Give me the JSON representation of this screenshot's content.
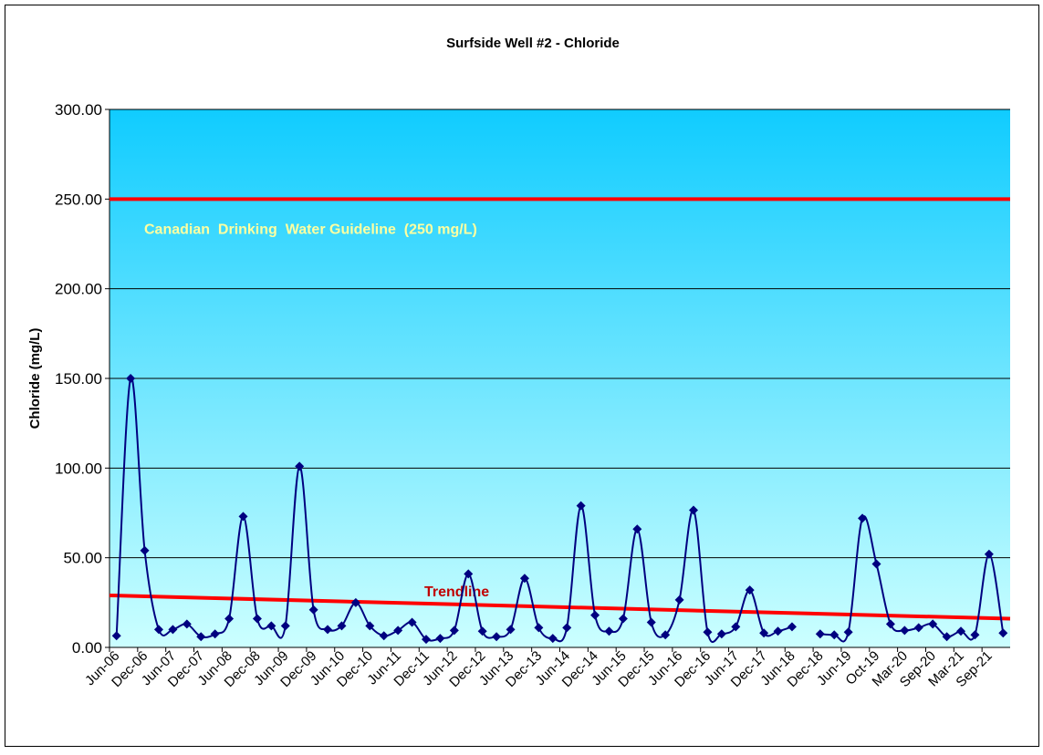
{
  "chart_data": {
    "type": "line",
    "title": "Surfside Well #2 - Chloride",
    "y_label": "Chloride (mg/L)",
    "categories": [
      "Jun-06",
      null,
      "Dec-06",
      null,
      "Jun-07",
      null,
      "Dec-07",
      null,
      "Jun-08",
      null,
      "Dec-08",
      null,
      "Jun-09",
      null,
      "Dec-09",
      null,
      "Jun-10",
      null,
      "Dec-10",
      null,
      "Jun-11",
      null,
      "Dec-11",
      null,
      "Jun-12",
      null,
      "Dec-12",
      null,
      "Jun-13",
      null,
      "Dec-13",
      null,
      "Jun-14",
      null,
      "Dec-14",
      null,
      "Jun-15",
      null,
      "Dec-15",
      null,
      "Jun-16",
      null,
      "Dec-16",
      null,
      "Jun-17",
      null,
      "Dec-17",
      null,
      "Jun-18",
      null,
      "Dec-18",
      null,
      "Jun-19",
      null,
      "Oct-19",
      null,
      "Mar-20",
      null,
      "Sep-20",
      null,
      "Mar-21",
      null,
      "Sep-21",
      null
    ],
    "series": [
      {
        "name": "Chloride",
        "color": "#000080",
        "values": [
          6.5,
          150,
          54,
          10,
          10,
          13,
          6,
          7.5,
          16,
          73,
          16,
          12,
          12,
          101,
          21,
          10,
          12,
          25,
          12,
          6.5,
          9.5,
          14,
          4.5,
          5,
          9.5,
          41,
          9,
          6,
          10,
          38.5,
          11,
          5,
          11,
          79,
          18,
          9,
          16,
          66,
          14,
          7,
          26.5,
          76.5,
          8.5,
          7.5,
          11.5,
          32,
          8,
          9,
          11.5,
          null,
          7.5,
          7,
          8.5,
          72,
          46.5,
          13,
          9.5,
          11,
          13,
          6,
          9,
          7,
          52,
          8
        ]
      }
    ],
    "guideline": {
      "label": "Canadian  Drinking  Water Guideline  (250 mg/L)",
      "value": 250,
      "color": "#ff0000"
    },
    "trendline": {
      "label": "Trendline",
      "values": [
        29,
        16
      ],
      "color": "#ff0000",
      "label_color": "#c00000"
    },
    "ylim": [
      0,
      300
    ],
    "yticks": [
      {
        "value": 0,
        "label": "0.00"
      },
      {
        "value": 50,
        "label": "50.00"
      },
      {
        "value": 100,
        "label": "100.00"
      },
      {
        "value": 150,
        "label": "150.00"
      },
      {
        "value": 200,
        "label": "200.00"
      },
      {
        "value": 250,
        "label": "250.00"
      },
      {
        "value": 300,
        "label": "300.00"
      }
    ],
    "grid": true
  }
}
